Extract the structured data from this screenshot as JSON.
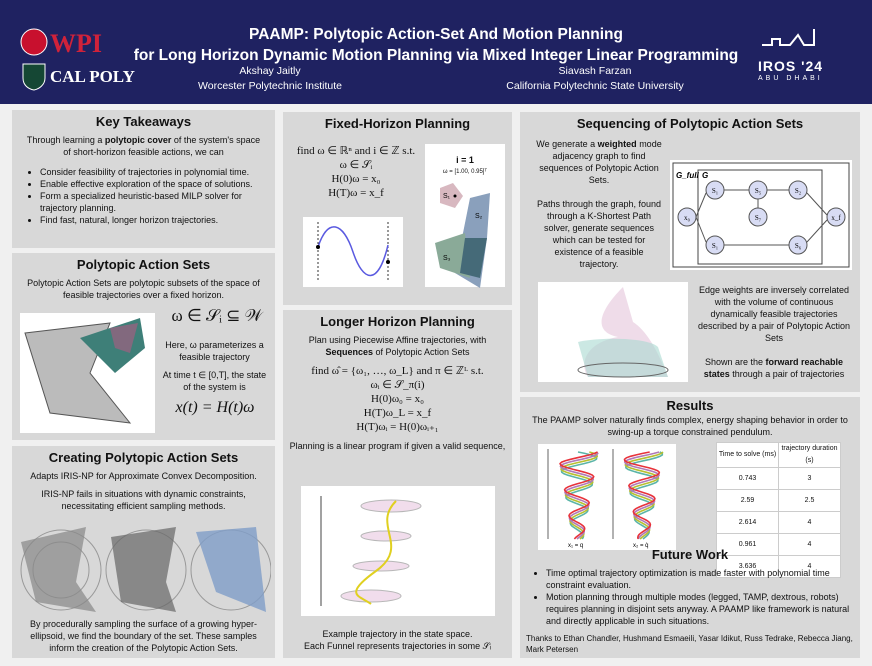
{
  "header": {
    "title_line1": "PAAMP: Polytopic Action-Set And Motion Planning",
    "title_line2": "for Long Horizon Dynamic Motion Planning via Mixed Integer Linear Programming",
    "authors": [
      {
        "name": "Akshay Jaitly",
        "affiliation": "Worcester Polytechnic Institute"
      },
      {
        "name": "Siavash Farzan",
        "affiliation": "California Polytechnic State University"
      }
    ],
    "logos": {
      "wpi": "WPI",
      "calpoly": "CAL POLY",
      "iros": "IROS '24",
      "iros_sub": "ABU DHABI"
    }
  },
  "key_takeaways": {
    "title": "Key Takeaways",
    "intro_pre": "Through learning a ",
    "intro_bold": "polytopic cover",
    "intro_post": " of the system's space of short-horizon feasible actions, we can",
    "bullets": [
      "Consider feasibility of trajectories in polynomial time.",
      "Enable effective exploration of the space of solutions.",
      "Form a specialized heuristic-based MILP solver for trajectory planning.",
      "Find fast, natural, longer horizon trajectories."
    ]
  },
  "polytopic_sets": {
    "title": "Polytopic Action Sets",
    "intro": "Polytopic Action Sets are polytopic subsets of the space of feasible trajectories over a fixed horizon.",
    "eq1": "ω ∈ 𝒮ᵢ ⊆ 𝒲",
    "text1": "Here, ω parameterizes a feasible trajectory",
    "text2": "At time t ∈ [0,T], the state of the system is",
    "eq2": "x(t) = H(t)ω"
  },
  "creating": {
    "title": "Creating Polytopic Action Sets",
    "p1": "Adapts IRIS-NP for Approximate Convex Decomposition.",
    "p2": "IRIS-NP fails in situations with dynamic constraints, necessitating efficient sampling methods.",
    "p3": "By procedurally sampling the surface of a growing hyper-ellipsoid, we find the boundary of the set. These samples inform the creation of the Polytopic Action Sets."
  },
  "fixed": {
    "title": "Fixed-Horizon Planning",
    "eqs": [
      "find ω ∈ ℝⁿ and i ∈ ℤ s.t.",
      "ω ∈ 𝒮ᵢ",
      "H(0)ω = x₀",
      "H(T)ω = x_f"
    ],
    "fig_title": "i = 1",
    "fig_sub": "ω = [1.00, 0.95]ᵀ",
    "labels": [
      "S₁",
      "S₂",
      "S₃"
    ]
  },
  "longer": {
    "title": "Longer Horizon Planning",
    "intro_pre": "Plan using Piecewise Affine trajectories, with ",
    "intro_bold": "Sequences",
    "intro_post": " of Polytopic Action Sets",
    "eqs": [
      "find ω̂ = {ω₁, …, ω_L} and π ∈ ℤᴸ s.t.",
      "ωᵢ ∈ 𝒮_π(i)",
      "H(0)ω₀ = x₀",
      "H(T)ω_L = x_f",
      "H(T)ωᵢ = H(0)ωᵢ₊₁"
    ],
    "note": "Planning is a linear program if given a valid sequence,",
    "caption1": "Example trajectory in the state space.",
    "caption2": "Each Funnel represents trajectories in some 𝒮ᵢ"
  },
  "sequencing": {
    "title": "Sequencing of Polytopic Action Sets",
    "p1_pre": "We generate a ",
    "p1_bold": "weighted",
    "p1_post": " mode adjacency graph to find sequences of Polytopic Action Sets.",
    "p2": "Paths through the graph, found through a K-Shortest Path solver, generate sequences which can be tested for existence of a feasible trajectory.",
    "p3": "Edge weights are inversely correlated with the volume of continuous dynamically feasible trajectories described by a pair of Polytopic Action Sets",
    "p4_pre": "Shown are the ",
    "p4_bold": "forward reachable states",
    "p4_post": " through a pair of trajectories",
    "graph": {
      "outer": "G_full",
      "inner": "G",
      "nodes": [
        "x₀",
        "S₁",
        "S₅",
        "S₂",
        "S₇",
        "S₁",
        "S₆",
        "x_f"
      ]
    }
  },
  "results": {
    "title": "Results",
    "intro": "The PAAMP solver naturally finds complex, energy shaping behavior in order to swing-up a torque constrained pendulum.",
    "table": {
      "headers": [
        "Time to solve (ms)",
        "trajectory duration (s)"
      ],
      "rows": [
        [
          "0.743",
          "3"
        ],
        [
          "2.59",
          "2.5"
        ],
        [
          "2.614",
          "4"
        ],
        [
          "0.961",
          "4"
        ],
        [
          "3.636",
          "4"
        ]
      ]
    },
    "plot_xlabels": [
      "x₁ = q",
      "x₂ = q̇"
    ],
    "series_colors": [
      "#5bb5a8",
      "#b8c030",
      "#b07ab8",
      "#e8323a"
    ]
  },
  "future": {
    "title": "Future Work",
    "bullets": [
      "Time optimal trajectory optimization is made faster with polynomial time constraint evaluation.",
      "Motion planning through multiple modes (legged, TAMP, dextrous, robots) requires planning in disjoint sets anyway. A PAAMP like framework is natural and directly applicable in such situations."
    ]
  },
  "thanks": "Thanks to Ethan Chandler, Hushmand Esmaeili, Yasar Idikut, Russ Tedrake, Rebecca Jiang, Mark Petersen",
  "colors": {
    "header": "#1f2261",
    "panel": "#d8d8d8",
    "wpi_red": "#c8102e",
    "calpoly_green": "#154734"
  }
}
